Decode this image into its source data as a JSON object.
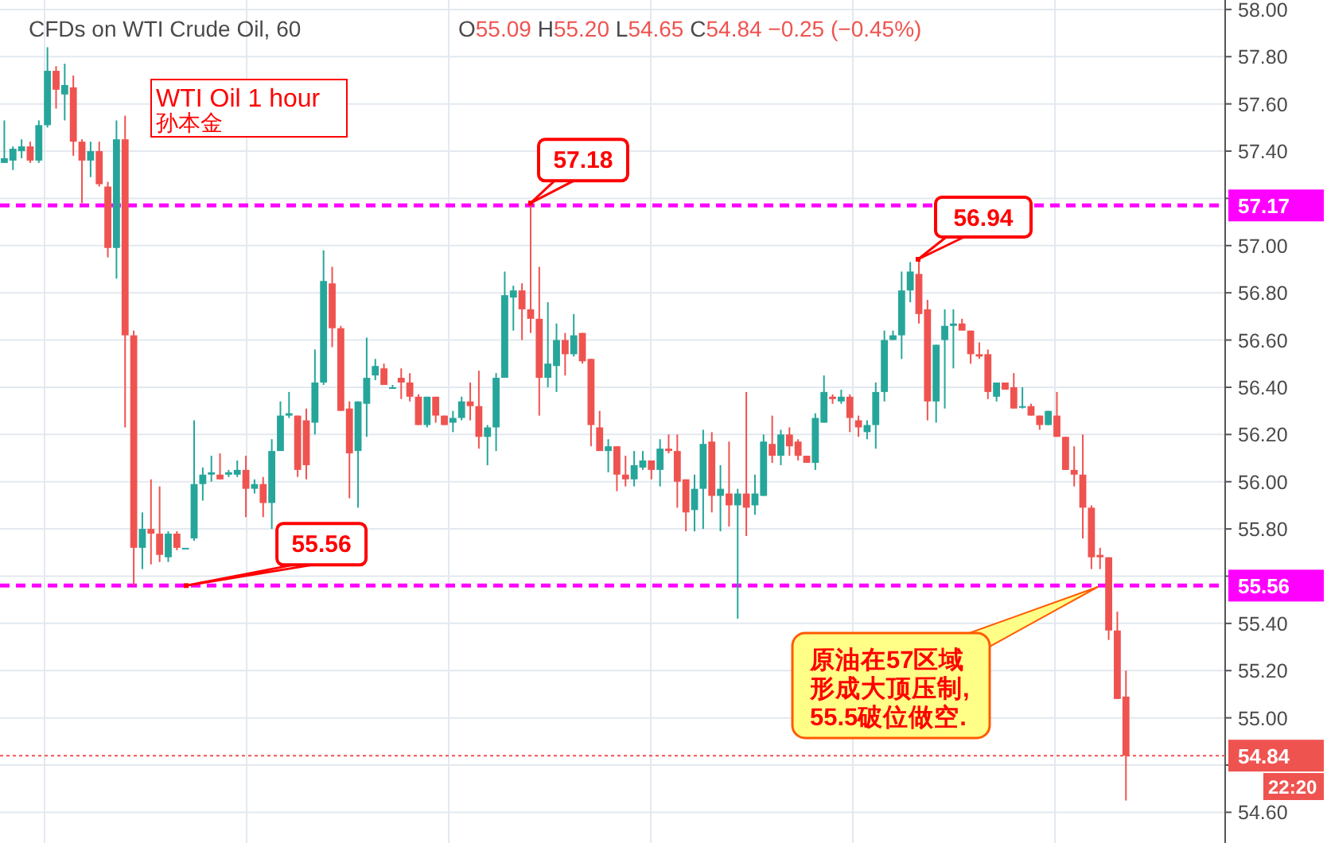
{
  "chart_data": {
    "type": "candlestick",
    "title": "CFDs on WTI Crude Oil, 60",
    "subtitle": "O55.09 H55.20 L54.65 C54.84 −0.25 (−0.45%)",
    "categories": [
      null,
      null,
      null,
      null,
      null,
      null,
      null,
      null,
      null,
      null,
      null,
      null,
      null,
      null,
      null,
      null,
      null,
      null,
      null,
      null,
      null,
      null,
      null,
      null,
      null,
      null,
      null,
      null,
      null,
      null,
      null,
      null,
      null,
      null,
      null,
      null,
      null,
      null,
      null,
      null,
      null,
      null,
      null,
      null,
      null,
      null,
      null,
      null,
      null,
      null,
      null,
      null,
      null,
      null,
      null,
      null,
      null,
      null,
      null,
      null,
      null,
      null,
      null,
      null,
      null,
      null,
      null,
      null,
      null,
      null,
      null,
      null,
      null,
      null,
      null,
      null,
      null,
      null,
      null,
      null,
      null,
      null,
      null,
      null,
      null,
      null,
      null,
      null,
      null,
      null,
      null,
      null,
      null,
      null,
      null,
      null,
      null,
      null,
      null,
      null,
      null,
      null,
      null,
      null,
      null,
      null,
      null,
      null,
      null,
      null,
      null,
      null,
      null,
      null,
      null,
      null,
      null,
      null,
      null,
      null,
      null,
      null,
      null,
      null,
      null,
      null,
      null,
      null,
      null,
      null,
      null,
      null,
      null,
      null,
      null,
      null,
      null,
      null,
      null,
      null,
      null,
      null
    ],
    "ohlc": [
      [
        57.35,
        57.53,
        57.35,
        57.37
      ],
      [
        57.36,
        57.42,
        57.32,
        57.41
      ],
      [
        57.4,
        57.45,
        57.37,
        57.42
      ],
      [
        57.42,
        57.44,
        57.35,
        57.36
      ],
      [
        57.36,
        57.53,
        57.35,
        57.51
      ],
      [
        57.51,
        57.84,
        57.5,
        57.74
      ],
      [
        57.74,
        57.76,
        57.58,
        57.66
      ],
      [
        57.64,
        57.77,
        57.53,
        57.68
      ],
      [
        57.67,
        57.72,
        57.38,
        57.44
      ],
      [
        57.44,
        57.45,
        57.18,
        57.36
      ],
      [
        57.36,
        57.44,
        57.29,
        57.4
      ],
      [
        57.4,
        57.44,
        57.25,
        57.26
      ],
      [
        57.25,
        57.27,
        56.95,
        56.99
      ],
      [
        56.99,
        57.53,
        56.86,
        57.45
      ],
      [
        57.45,
        57.55,
        56.23,
        56.62
      ],
      [
        56.62,
        56.64,
        55.56,
        55.72
      ],
      [
        55.72,
        55.87,
        55.63,
        55.8
      ],
      [
        55.8,
        56.01,
        55.65,
        55.78
      ],
      [
        55.78,
        55.98,
        55.66,
        55.69
      ],
      [
        55.68,
        55.79,
        55.66,
        55.78
      ],
      [
        55.78,
        55.79,
        55.71,
        55.72
      ],
      [
        55.72,
        55.72,
        55.72,
        55.72
      ],
      [
        55.76,
        56.26,
        55.75,
        55.99
      ],
      [
        55.99,
        56.06,
        55.92,
        56.03
      ],
      [
        56.03,
        56.11,
        56.0,
        56.04
      ],
      [
        56.03,
        56.12,
        56.01,
        56.01
      ],
      [
        56.03,
        56.05,
        56.02,
        56.04
      ],
      [
        56.03,
        56.09,
        56.02,
        56.05
      ],
      [
        56.05,
        56.11,
        55.85,
        55.97
      ],
      [
        55.97,
        56.01,
        55.95,
        55.99
      ],
      [
        55.99,
        56.02,
        55.85,
        55.91
      ],
      [
        55.91,
        56.18,
        55.8,
        56.13
      ],
      [
        56.13,
        56.34,
        56.13,
        56.28
      ],
      [
        56.28,
        56.38,
        56.27,
        56.29
      ],
      [
        56.28,
        56.28,
        56.02,
        56.05
      ],
      [
        56.26,
        56.31,
        56.01,
        56.07
      ],
      [
        56.25,
        56.56,
        56.2,
        56.42
      ],
      [
        56.42,
        56.98,
        56.41,
        56.85
      ],
      [
        56.84,
        56.91,
        56.57,
        56.65
      ],
      [
        56.65,
        56.66,
        56.3,
        56.3
      ],
      [
        56.31,
        56.34,
        55.93,
        56.12
      ],
      [
        56.13,
        56.34,
        55.89,
        56.34
      ],
      [
        56.33,
        56.61,
        56.19,
        56.44
      ],
      [
        56.45,
        56.52,
        56.43,
        56.49
      ],
      [
        56.48,
        56.5,
        56.41,
        56.41
      ],
      [
        56.4,
        56.41,
        56.4,
        56.4
      ],
      [
        56.44,
        56.48,
        56.35,
        56.42
      ],
      [
        56.42,
        56.46,
        56.34,
        56.36
      ],
      [
        56.36,
        56.37,
        56.24,
        56.24
      ],
      [
        56.24,
        56.36,
        56.23,
        56.36
      ],
      [
        56.36,
        56.36,
        56.25,
        56.28
      ],
      [
        56.28,
        56.28,
        56.24,
        56.24
      ],
      [
        56.25,
        56.3,
        56.21,
        56.27
      ],
      [
        56.27,
        56.36,
        56.26,
        56.34
      ],
      [
        56.34,
        56.42,
        56.26,
        56.32
      ],
      [
        56.32,
        56.47,
        56.14,
        56.19
      ],
      [
        56.19,
        56.24,
        56.07,
        56.23
      ],
      [
        56.23,
        56.46,
        56.13,
        56.44
      ],
      [
        56.44,
        56.89,
        56.44,
        56.79
      ],
      [
        56.78,
        56.83,
        56.64,
        56.81
      ],
      [
        56.81,
        56.84,
        56.6,
        56.73
      ],
      [
        56.73,
        57.18,
        56.63,
        56.69
      ],
      [
        56.69,
        56.91,
        56.28,
        56.44
      ],
      [
        56.44,
        56.76,
        56.4,
        56.5
      ],
      [
        56.49,
        56.67,
        56.38,
        56.6
      ],
      [
        56.6,
        56.63,
        56.45,
        56.54
      ],
      [
        56.54,
        56.71,
        56.53,
        56.62
      ],
      [
        56.63,
        56.63,
        56.5,
        56.51
      ],
      [
        56.52,
        56.52,
        56.15,
        56.24
      ],
      [
        56.23,
        56.3,
        56.13,
        56.13
      ],
      [
        56.13,
        56.18,
        56.04,
        56.15
      ],
      [
        56.15,
        56.15,
        55.96,
        56.03
      ],
      [
        56.03,
        56.11,
        55.98,
        56.01
      ],
      [
        56.01,
        56.13,
        55.98,
        56.07
      ],
      [
        56.06,
        56.13,
        56.05,
        56.09
      ],
      [
        56.09,
        56.09,
        56.01,
        56.05
      ],
      [
        56.05,
        56.18,
        55.98,
        56.14
      ],
      [
        56.14,
        56.2,
        56.12,
        56.13
      ],
      [
        56.13,
        56.2,
        55.89,
        56.0
      ],
      [
        56.01,
        56.01,
        55.79,
        55.87
      ],
      [
        55.88,
        56.03,
        55.79,
        55.97
      ],
      [
        55.97,
        56.22,
        55.8,
        56.16
      ],
      [
        56.17,
        56.21,
        55.87,
        55.94
      ],
      [
        55.94,
        56.07,
        55.79,
        55.97
      ],
      [
        55.95,
        56.17,
        55.81,
        55.9
      ],
      [
        55.9,
        55.97,
        55.42,
        55.95
      ],
      [
        55.95,
        56.38,
        55.77,
        55.89
      ],
      [
        55.9,
        56.03,
        55.86,
        55.95
      ],
      [
        55.94,
        56.2,
        55.94,
        56.17
      ],
      [
        56.16,
        56.28,
        56.08,
        56.11
      ],
      [
        56.11,
        56.22,
        56.07,
        56.2
      ],
      [
        56.2,
        56.23,
        56.11,
        56.15
      ],
      [
        56.17,
        56.18,
        56.09,
        56.11
      ],
      [
        56.11,
        56.11,
        56.08,
        56.08
      ],
      [
        56.08,
        56.29,
        56.05,
        56.27
      ],
      [
        56.25,
        56.45,
        56.25,
        56.38
      ],
      [
        56.36,
        56.37,
        56.33,
        56.35
      ],
      [
        56.34,
        56.39,
        56.33,
        56.36
      ],
      [
        56.36,
        56.37,
        56.21,
        56.27
      ],
      [
        56.26,
        56.28,
        56.19,
        56.23
      ],
      [
        56.21,
        56.26,
        56.18,
        56.24
      ],
      [
        56.24,
        56.42,
        56.14,
        56.38
      ],
      [
        56.38,
        56.64,
        56.34,
        56.6
      ],
      [
        56.6,
        56.64,
        56.6,
        56.62
      ],
      [
        56.62,
        56.89,
        56.52,
        56.81
      ],
      [
        56.81,
        56.93,
        56.76,
        56.89
      ],
      [
        56.88,
        56.94,
        56.67,
        56.71
      ],
      [
        56.73,
        56.77,
        56.26,
        56.34
      ],
      [
        56.34,
        56.58,
        56.25,
        56.58
      ],
      [
        56.6,
        56.73,
        56.31,
        56.66
      ],
      [
        56.66,
        56.73,
        56.48,
        56.67
      ],
      [
        56.67,
        56.69,
        56.64,
        56.64
      ],
      [
        56.64,
        56.64,
        56.5,
        56.54
      ],
      [
        56.54,
        56.59,
        56.52,
        56.53
      ],
      [
        56.54,
        56.56,
        56.35,
        56.38
      ],
      [
        56.36,
        56.42,
        56.34,
        56.42
      ],
      [
        56.42,
        56.42,
        56.39,
        56.39
      ],
      [
        56.4,
        56.46,
        56.31,
        56.31
      ],
      [
        56.32,
        56.4,
        56.31,
        56.32
      ],
      [
        56.32,
        56.33,
        56.28,
        56.28
      ],
      [
        56.28,
        56.28,
        56.22,
        56.24
      ],
      [
        56.24,
        56.3,
        56.24,
        56.3
      ],
      [
        56.28,
        56.38,
        56.19,
        56.19
      ],
      [
        56.19,
        56.19,
        56.05,
        56.05
      ],
      [
        56.05,
        56.15,
        55.98,
        56.03
      ],
      [
        56.03,
        56.2,
        55.76,
        55.89
      ],
      [
        55.89,
        55.9,
        55.63,
        55.68
      ],
      [
        55.69,
        55.72,
        55.63,
        55.68
      ],
      [
        55.68,
        55.68,
        55.33,
        55.37
      ],
      [
        55.37,
        55.45,
        55.08,
        55.08
      ],
      [
        55.09,
        55.2,
        54.65,
        54.84
      ],
      null,
      null,
      null,
      null,
      null,
      null,
      null,
      null,
      null,
      null,
      null
    ],
    "ylim": [
      54.47,
      58.04
    ],
    "yticks": [
      {
        "value": 54.6,
        "label": "54.60"
      },
      {
        "value": 54.8,
        "label": null
      },
      {
        "value": 55.0,
        "label": "55.00"
      },
      {
        "value": 55.2,
        "label": "55.20"
      },
      {
        "value": 55.4,
        "label": "55.40"
      },
      {
        "value": 55.6,
        "label": null
      },
      {
        "value": 55.8,
        "label": "55.80"
      },
      {
        "value": 56.0,
        "label": "56.00"
      },
      {
        "value": 56.2,
        "label": "56.20"
      },
      {
        "value": 56.4,
        "label": "56.40"
      },
      {
        "value": 56.6,
        "label": "56.60"
      },
      {
        "value": 56.8,
        "label": "56.80"
      },
      {
        "value": 57.0,
        "label": "57.00"
      },
      {
        "value": 57.2,
        "label": null
      },
      {
        "value": 57.4,
        "label": "57.40"
      },
      {
        "value": 57.6,
        "label": "57.60"
      },
      {
        "value": 57.8,
        "label": "57.80"
      },
      {
        "value": 58.0,
        "label": "58.00"
      }
    ],
    "grid": true,
    "tick_labels": "y",
    "ref_lines": [
      {
        "axis": "y",
        "value": 57.17,
        "label": "57.17",
        "color": "#ff00ff",
        "line_style": "dashed"
      },
      {
        "axis": "y",
        "value": 55.56,
        "label": "55.56",
        "color": "#ff00ff",
        "line_style": "dashed"
      },
      {
        "axis": "y",
        "value": 54.84,
        "label": "54.84",
        "color": "#ef5350",
        "line_style": "dotted"
      }
    ],
    "annotations": [
      {
        "text": "57.18",
        "y": 57.18
      },
      "56.94",
      {
        "text": "55.56",
        "y": 55.56
      },
      "WTI Oil 1 hour",
      "孙本金",
      "原油在57区域形成大顶压制,55.5破位做空.",
      "22:20"
    ]
  }
}
